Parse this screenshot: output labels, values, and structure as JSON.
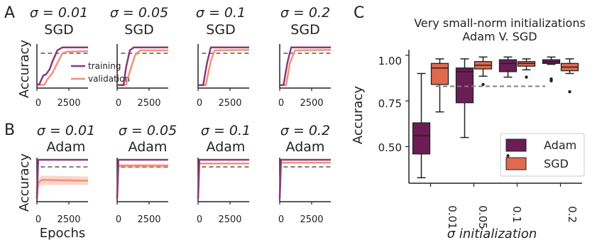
{
  "colors": {
    "adam": "#6b1d55",
    "sgd": "#df6a4d",
    "training": "#8a3a78",
    "validation": "#f3907a",
    "validation_band": "#f7c4b5",
    "reference": "#808080",
    "axis": "#222222"
  },
  "panel_letters": {
    "a": "A",
    "b": "B",
    "c": "C"
  },
  "chart_data": [
    {
      "panel": "A",
      "type": "line",
      "ylabel": "Accuracy",
      "x_ticks": [
        "0",
        "2500"
      ],
      "legend": {
        "training": "training",
        "validation": "validation"
      },
      "xlim": [
        0,
        4000
      ],
      "ylim": [
        0,
        1.05
      ],
      "reference_line": 0.83,
      "subplots": [
        {
          "sigma_label": "σ = 0.01",
          "optimizer": "SGD",
          "training": {
            "x": [
              0,
              200,
              500,
              700,
              1000,
              1200,
              1600,
              2000,
              4000
            ],
            "y": [
              0.07,
              0.1,
              0.3,
              0.32,
              0.45,
              0.62,
              0.9,
              0.97,
              0.97
            ]
          },
          "validation": {
            "x": [
              0,
              600,
              800,
              1200,
              1600,
              2000,
              2400,
              4000
            ],
            "y": [
              0.07,
              0.08,
              0.2,
              0.35,
              0.6,
              0.83,
              0.87,
              0.88
            ]
          }
        },
        {
          "sigma_label": "σ = 0.05",
          "optimizer": "SGD",
          "training": {
            "x": [
              0,
              500,
              700,
              1000,
              1300,
              4000
            ],
            "y": [
              0.07,
              0.07,
              0.5,
              0.9,
              0.97,
              0.97
            ]
          },
          "validation": {
            "x": [
              0,
              700,
              1000,
              1400,
              1800,
              4000
            ],
            "y": [
              0.07,
              0.08,
              0.4,
              0.78,
              0.9,
              0.9
            ]
          }
        },
        {
          "sigma_label": "σ = 0.1",
          "optimizer": "SGD",
          "training": {
            "x": [
              0,
              400,
              700,
              1000,
              4000
            ],
            "y": [
              0.07,
              0.07,
              0.6,
              0.97,
              0.97
            ]
          },
          "validation": {
            "x": [
              0,
              600,
              1000,
              1300,
              4000
            ],
            "y": [
              0.07,
              0.07,
              0.65,
              0.9,
              0.91
            ]
          }
        },
        {
          "sigma_label": "σ = 0.2",
          "optimizer": "SGD",
          "training": {
            "x": [
              0,
              300,
              600,
              900,
              4000
            ],
            "y": [
              0.07,
              0.07,
              0.6,
              0.97,
              0.97
            ]
          },
          "validation": {
            "x": [
              0,
              500,
              800,
              1200,
              4000
            ],
            "y": [
              0.07,
              0.07,
              0.6,
              0.9,
              0.91
            ]
          }
        }
      ]
    },
    {
      "panel": "B",
      "type": "line",
      "ylabel": "Accuracy",
      "xlabel": "Epochs",
      "x_ticks": [
        "0",
        "2500"
      ],
      "xlim": [
        0,
        4000
      ],
      "ylim": [
        0,
        1.05
      ],
      "reference_line": 0.83,
      "subplots": [
        {
          "sigma_label": "σ = 0.01",
          "optimizer": "Adam",
          "training": {
            "x": [
              0,
              100,
              4000
            ],
            "y": [
              0.07,
              1.0,
              1.0
            ]
          },
          "validation": {
            "x": [
              0,
              100,
              400,
              4000
            ],
            "y": [
              0.07,
              0.45,
              0.52,
              0.5
            ]
          },
          "validation_band": {
            "x": [
              100,
              400,
              4000
            ],
            "low": [
              0.35,
              0.4,
              0.4
            ],
            "high": [
              0.55,
              0.62,
              0.6
            ]
          }
        },
        {
          "sigma_label": "σ = 0.05",
          "optimizer": "Adam",
          "training": {
            "x": [
              0,
              100,
              4000
            ],
            "y": [
              0.07,
              1.0,
              1.0
            ]
          },
          "validation": {
            "x": [
              0,
              100,
              4000
            ],
            "y": [
              0.07,
              0.86,
              0.86
            ]
          },
          "validation_band": {
            "x": [
              100,
              4000
            ],
            "low": [
              0.8,
              0.8
            ],
            "high": [
              0.9,
              0.9
            ]
          }
        },
        {
          "sigma_label": "σ = 0.1",
          "optimizer": "Adam",
          "training": {
            "x": [
              0,
              100,
              4000
            ],
            "y": [
              0.07,
              1.0,
              1.0
            ]
          },
          "validation": {
            "x": [
              0,
              100,
              4000
            ],
            "y": [
              0.07,
              0.91,
              0.91
            ]
          }
        },
        {
          "sigma_label": "σ = 0.2",
          "optimizer": "Adam",
          "training": {
            "x": [
              0,
              100,
              4000
            ],
            "y": [
              0.07,
              1.0,
              1.0
            ]
          },
          "validation": {
            "x": [
              0,
              100,
              4000
            ],
            "y": [
              0.07,
              0.93,
              0.93
            ]
          }
        }
      ]
    },
    {
      "panel": "C",
      "type": "box",
      "title_line1": "Very small-norm initializations",
      "title_line2": "Adam V. SGD",
      "ylabel": "Accuracy",
      "xlabel": "σ initialization",
      "categories": [
        "0.01",
        "0.05",
        "0.1",
        "0.2"
      ],
      "y_ticks": [
        "0.50",
        "0.75",
        "1.00"
      ],
      "y_tick_values": [
        0.5,
        0.75,
        1.0
      ],
      "ylim": [
        0.3,
        1.03
      ],
      "reference_line": 0.83,
      "legend_position": "bottom-right",
      "series": [
        {
          "name": "Adam",
          "boxes": [
            {
              "min": 0.33,
              "q1": 0.46,
              "median": 0.56,
              "q3": 0.63,
              "max": 0.9,
              "outliers": []
            },
            {
              "min": 0.55,
              "q1": 0.74,
              "median": 0.91,
              "q3": 0.93,
              "max": 0.98,
              "outliers": []
            },
            {
              "min": 0.88,
              "q1": 0.91,
              "median": 0.955,
              "q3": 0.975,
              "max": 0.99,
              "outliers": [
                0.45
              ]
            },
            {
              "min": 0.95,
              "q1": 0.955,
              "median": 0.965,
              "q3": 0.975,
              "max": 0.99,
              "outliers": [
                0.87,
                0.86
              ]
            }
          ]
        },
        {
          "name": "SGD",
          "boxes": [
            {
              "min": 0.69,
              "q1": 0.84,
              "median": 0.93,
              "q3": 0.955,
              "max": 0.98,
              "outliers": []
            },
            {
              "min": 0.885,
              "q1": 0.925,
              "median": 0.945,
              "q3": 0.965,
              "max": 0.99,
              "outliers": [
                0.84
              ]
            },
            {
              "min": 0.92,
              "q1": 0.94,
              "median": 0.955,
              "q3": 0.965,
              "max": 0.98,
              "outliers": [
                0.88
              ]
            },
            {
              "min": 0.9,
              "q1": 0.915,
              "median": 0.935,
              "q3": 0.955,
              "max": 0.98,
              "outliers": [
                0.8
              ]
            }
          ]
        }
      ]
    }
  ]
}
